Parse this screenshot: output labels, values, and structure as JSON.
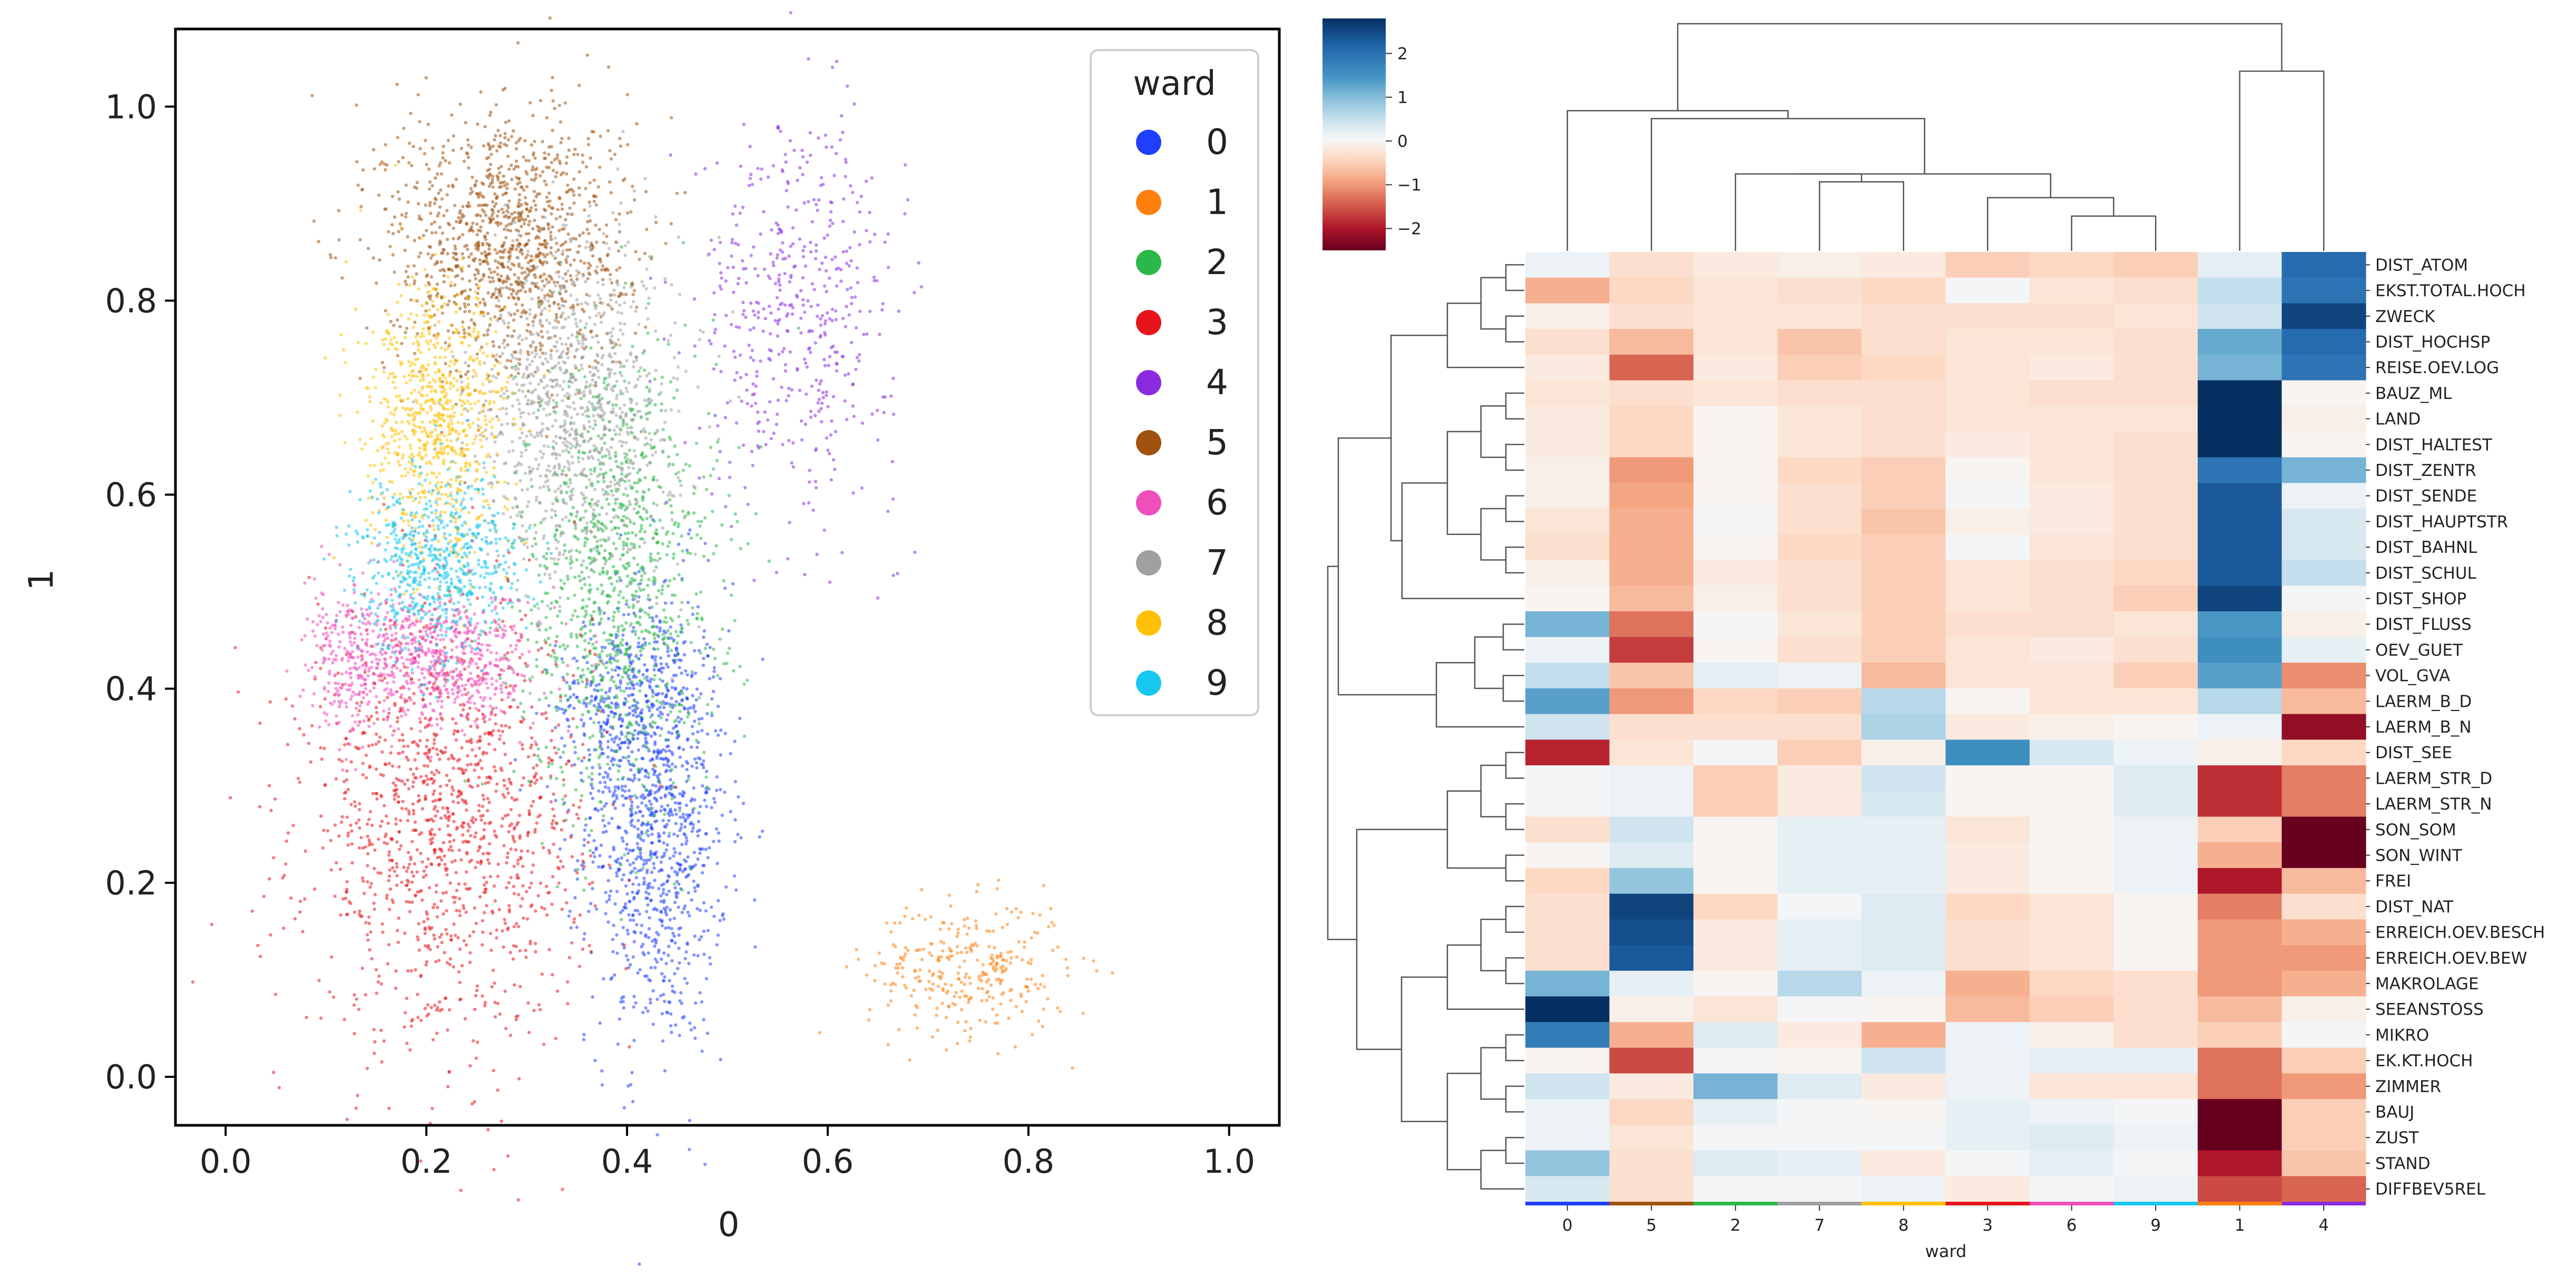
{
  "chart_data": [
    {
      "type": "scatter",
      "xlabel": "0",
      "ylabel": "1",
      "xlim": [
        -0.05,
        1.05
      ],
      "ylim": [
        -0.05,
        1.08
      ],
      "xticks": [
        "0.0",
        "0.2",
        "0.4",
        "0.6",
        "0.8",
        "1.0"
      ],
      "yticks": [
        "0.0",
        "0.2",
        "0.4",
        "0.6",
        "0.8",
        "1.0"
      ],
      "legend": {
        "title": "ward",
        "placement": "top-right",
        "entries": [
          "0",
          "1",
          "2",
          "3",
          "4",
          "5",
          "6",
          "7",
          "8",
          "9"
        ]
      },
      "colors": [
        "#1f3fff",
        "#ff7f0e",
        "#2bb84a",
        "#e8141c",
        "#8a2be2",
        "#a0520e",
        "#ee4fbb",
        "#a0a0a0",
        "#ffc107",
        "#17c7f0"
      ],
      "clusters": [
        {
          "label": "0",
          "center": [
            0.43,
            0.27
          ],
          "spread": [
            0.035,
            0.12
          ],
          "n": 1100
        },
        {
          "label": "0",
          "center": [
            0.39,
            0.38
          ],
          "spread": [
            0.03,
            0.04
          ],
          "n": 250
        },
        {
          "label": "1",
          "center": [
            0.74,
            0.11
          ],
          "spread": [
            0.05,
            0.035
          ],
          "n": 320
        },
        {
          "label": "2",
          "center": [
            0.39,
            0.51
          ],
          "spread": [
            0.05,
            0.12
          ],
          "n": 1100
        },
        {
          "label": "3",
          "center": [
            0.22,
            0.26
          ],
          "spread": [
            0.07,
            0.11
          ],
          "n": 1300
        },
        {
          "label": "4",
          "center": [
            0.57,
            0.79
          ],
          "spread": [
            0.05,
            0.1
          ],
          "n": 500
        },
        {
          "label": "5",
          "center": [
            0.28,
            0.86
          ],
          "spread": [
            0.06,
            0.07
          ],
          "n": 1200
        },
        {
          "label": "6",
          "center": [
            0.21,
            0.43
          ],
          "spread": [
            0.05,
            0.035
          ],
          "n": 700
        },
        {
          "label": "6",
          "center": [
            0.12,
            0.42
          ],
          "spread": [
            0.02,
            0.04
          ],
          "n": 180
        },
        {
          "label": "7",
          "center": [
            0.35,
            0.69
          ],
          "spread": [
            0.05,
            0.09
          ],
          "n": 1100
        },
        {
          "label": "8",
          "center": [
            0.21,
            0.67
          ],
          "spread": [
            0.035,
            0.07
          ],
          "n": 800
        },
        {
          "label": "9",
          "center": [
            0.21,
            0.53
          ],
          "spread": [
            0.04,
            0.045
          ],
          "n": 650
        }
      ]
    },
    {
      "type": "heatmap",
      "xlabel": "ward",
      "columns": [
        "0",
        "5",
        "2",
        "7",
        "8",
        "3",
        "6",
        "9",
        "1",
        "4"
      ],
      "rows": [
        "DIST_ATOM",
        "EKST.TOTAL.HOCH",
        "ZWECK",
        "DIST_HOCHSP",
        "REISE.OEV.LOG",
        "BAUZ_ML",
        "LAND",
        "DIST_HALTEST",
        "DIST_ZENTR",
        "DIST_SENDE",
        "DIST_HAUPTSTR",
        "DIST_BAHNL",
        "DIST_SCHUL",
        "DIST_SHOP",
        "DIST_FLUSS",
        "OEV_GUET",
        "VOL_GVA",
        "LAERM_B_D",
        "LAERM_B_N",
        "DIST_SEE",
        "LAERM_STR_D",
        "LAERM_STR_N",
        "SON_SOM",
        "SON_WINT",
        "FREI",
        "DIST_NAT",
        "ERREICH.OEV.BESCH",
        "ERREICH.OEV.BEW",
        "MAKROLAGE",
        "SEEANSTOSS",
        "MIKRO",
        "EK.KT.HOCH",
        "ZIMMER",
        "BAUJ",
        "ZUST",
        "STAND",
        "DIFFBEV5REL"
      ],
      "colorbar": {
        "min": -2.5,
        "max": 2.8,
        "ticks": [
          "2",
          "1",
          "0",
          "−1",
          "−2"
        ],
        "cmap": "RdBu"
      },
      "values": [
        [
          0.3,
          -0.3,
          -0.1,
          0.0,
          -0.1,
          -0.5,
          -0.4,
          -0.5,
          0.4,
          2.2
        ],
        [
          -0.8,
          -0.4,
          -0.2,
          -0.3,
          -0.4,
          0.2,
          -0.2,
          -0.3,
          0.8,
          2.1
        ],
        [
          0.0,
          -0.3,
          -0.2,
          -0.2,
          -0.3,
          -0.3,
          -0.3,
          -0.2,
          0.7,
          2.6
        ],
        [
          -0.3,
          -0.7,
          -0.2,
          -0.6,
          -0.3,
          -0.2,
          -0.2,
          -0.3,
          1.5,
          2.2
        ],
        [
          -0.1,
          -1.4,
          -0.1,
          -0.5,
          -0.4,
          -0.2,
          -0.1,
          -0.3,
          1.4,
          2.1
        ],
        [
          -0.2,
          -0.3,
          -0.2,
          -0.3,
          -0.3,
          -0.2,
          -0.3,
          -0.3,
          3.0,
          0.1
        ],
        [
          -0.1,
          -0.4,
          0.1,
          -0.2,
          -0.3,
          -0.2,
          -0.2,
          -0.2,
          3.0,
          0.0
        ],
        [
          -0.1,
          -0.4,
          0.1,
          -0.2,
          -0.3,
          -0.1,
          -0.2,
          -0.3,
          3.0,
          0.1
        ],
        [
          0.0,
          -1.0,
          0.1,
          -0.4,
          -0.5,
          0.1,
          -0.2,
          -0.3,
          2.1,
          1.4
        ],
        [
          0.0,
          -0.9,
          0.1,
          -0.3,
          -0.5,
          0.2,
          -0.1,
          -0.3,
          2.4,
          0.3
        ],
        [
          -0.2,
          -0.8,
          0.2,
          -0.3,
          -0.6,
          0.0,
          -0.1,
          -0.3,
          2.4,
          0.6
        ],
        [
          -0.3,
          -0.8,
          0.1,
          -0.4,
          -0.5,
          0.2,
          -0.2,
          -0.3,
          2.4,
          0.6
        ],
        [
          0.0,
          -0.8,
          -0.1,
          -0.3,
          -0.5,
          -0.2,
          -0.3,
          -0.4,
          2.4,
          0.8
        ],
        [
          0.1,
          -0.7,
          0.0,
          -0.3,
          -0.5,
          -0.2,
          -0.3,
          -0.5,
          2.6,
          0.2
        ],
        [
          1.4,
          -1.3,
          0.2,
          -0.2,
          -0.5,
          -0.3,
          -0.3,
          -0.2,
          1.7,
          0.0
        ],
        [
          0.3,
          -1.7,
          0.1,
          -0.3,
          -0.5,
          -0.2,
          -0.1,
          -0.3,
          1.8,
          0.4
        ],
        [
          0.8,
          -0.6,
          0.4,
          0.3,
          -0.7,
          -0.2,
          -0.2,
          -0.5,
          1.6,
          -1.1
        ],
        [
          1.6,
          -1.0,
          -0.4,
          -0.5,
          0.9,
          0.1,
          -0.2,
          -0.2,
          0.9,
          -0.7
        ],
        [
          0.7,
          -0.3,
          -0.3,
          -0.3,
          1.0,
          -0.1,
          0.0,
          0.1,
          0.3,
          -2.2
        ],
        [
          -1.9,
          -0.2,
          0.2,
          -0.5,
          0.0,
          1.8,
          0.6,
          0.3,
          0.0,
          -0.4
        ],
        [
          0.2,
          0.3,
          -0.5,
          -0.1,
          0.7,
          0.1,
          0.1,
          0.5,
          -1.8,
          -1.2
        ],
        [
          0.2,
          0.3,
          -0.5,
          -0.1,
          0.6,
          0.1,
          0.1,
          0.5,
          -1.8,
          -1.2
        ],
        [
          -0.3,
          0.7,
          0.1,
          0.4,
          0.4,
          -0.2,
          0.1,
          0.3,
          -0.5,
          -2.5
        ],
        [
          0.1,
          0.5,
          0.1,
          0.4,
          0.4,
          -0.1,
          0.1,
          0.3,
          -0.8,
          -2.5
        ],
        [
          -0.4,
          1.2,
          0.1,
          0.4,
          0.4,
          -0.1,
          0.1,
          0.3,
          -2.0,
          -0.7
        ],
        [
          -0.3,
          2.6,
          -0.4,
          0.2,
          0.5,
          -0.4,
          -0.2,
          0.1,
          -1.2,
          -0.3
        ],
        [
          -0.3,
          2.5,
          -0.1,
          0.4,
          0.5,
          -0.3,
          -0.2,
          0.1,
          -1.0,
          -0.8
        ],
        [
          -0.3,
          2.4,
          -0.1,
          0.4,
          0.5,
          -0.3,
          -0.2,
          0.1,
          -1.0,
          -1.0
        ],
        [
          1.4,
          0.4,
          0.1,
          0.9,
          0.3,
          -0.8,
          -0.4,
          -0.3,
          -1.0,
          -0.8
        ],
        [
          2.8,
          0.0,
          -0.2,
          0.2,
          0.1,
          -0.7,
          -0.5,
          -0.3,
          -0.7,
          0.0
        ],
        [
          2.0,
          -0.8,
          0.5,
          -0.1,
          -0.8,
          0.3,
          0.0,
          -0.3,
          -0.5,
          0.2
        ],
        [
          0.1,
          -1.6,
          0.2,
          0.1,
          0.7,
          0.3,
          0.4,
          0.4,
          -1.3,
          -0.5
        ],
        [
          0.7,
          -0.1,
          1.4,
          0.5,
          -0.1,
          0.3,
          -0.2,
          -0.2,
          -1.3,
          -1.0
        ],
        [
          0.3,
          -0.4,
          0.4,
          0.2,
          0.1,
          0.4,
          0.3,
          0.2,
          -2.7,
          -0.5
        ],
        [
          0.3,
          -0.2,
          0.2,
          0.2,
          0.2,
          0.4,
          0.5,
          0.3,
          -2.7,
          -0.5
        ],
        [
          1.2,
          -0.3,
          0.5,
          0.4,
          -0.1,
          0.2,
          0.4,
          0.2,
          -2.0,
          -0.6
        ],
        [
          0.6,
          -0.3,
          0.2,
          0.2,
          0.3,
          -0.1,
          0.2,
          0.3,
          -1.6,
          -1.4
        ]
      ],
      "col_colors": [
        "#1f3fff",
        "#a0520e",
        "#2bb84a",
        "#a0a0a0",
        "#ffc107",
        "#e8141c",
        "#ee4fbb",
        "#17c7f0",
        "#ff7f0e",
        "#8a2be2"
      ]
    }
  ]
}
